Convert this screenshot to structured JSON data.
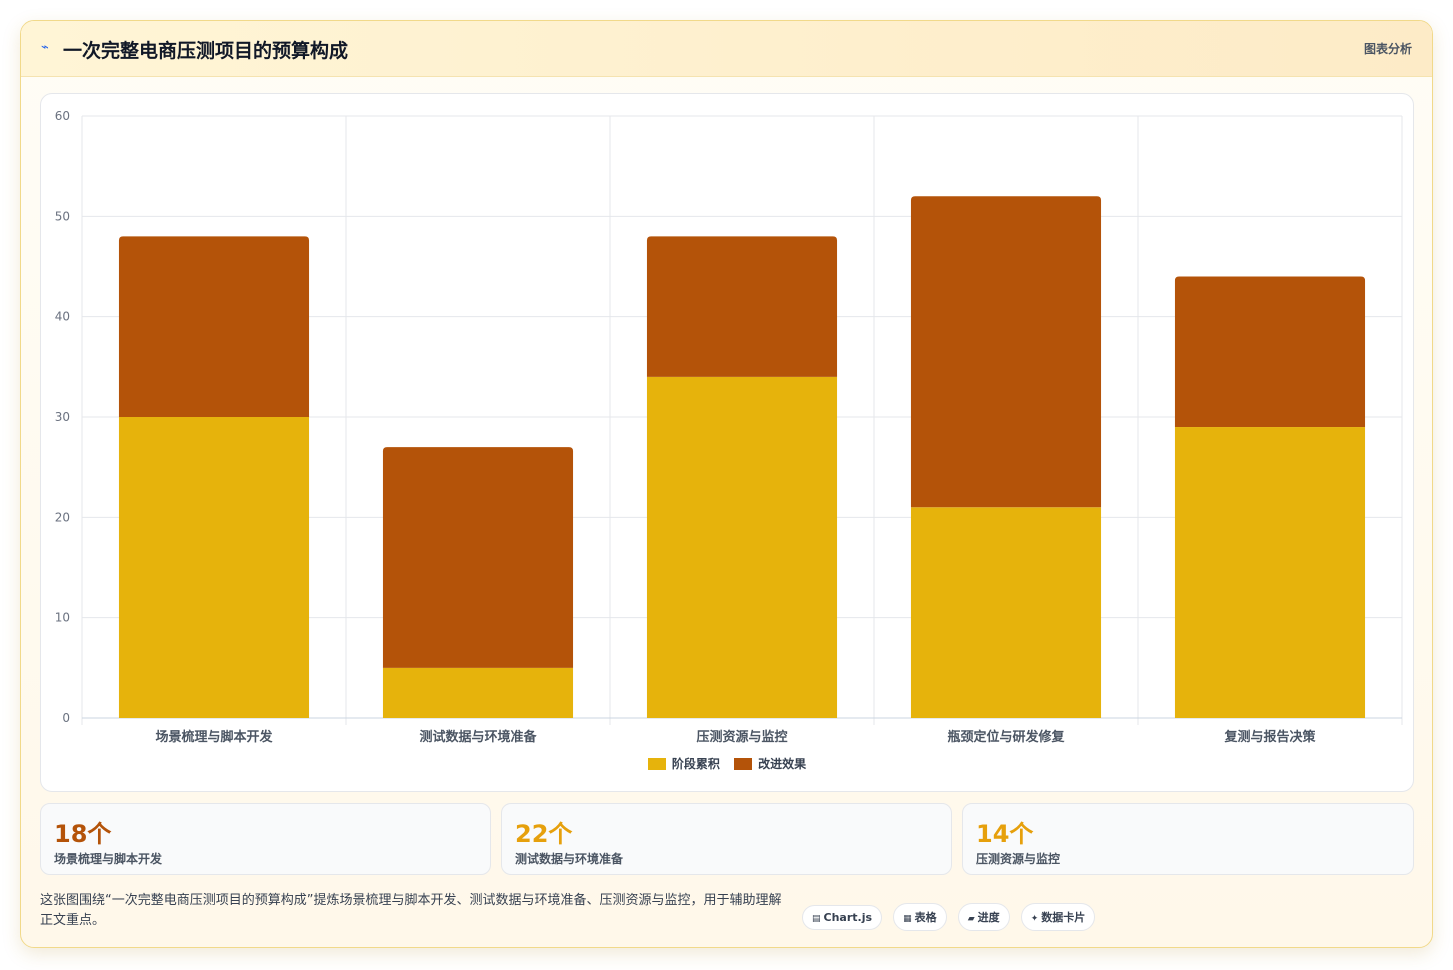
{
  "header": {
    "title_icon": "⌁",
    "title": "一次完整电商压测项目的预算构成",
    "tag": "图表分析"
  },
  "chart_data": {
    "type": "bar",
    "stacked": true,
    "categories": [
      "场景梳理与脚本开发",
      "测试数据与环境准备",
      "压测资源与监控",
      "瓶颈定位与研发修复",
      "复测与报告决策"
    ],
    "series": [
      {
        "name": "阶段累积",
        "color": "#e6b30c",
        "values": [
          30,
          5,
          34,
          21,
          29
        ]
      },
      {
        "name": "改进效果",
        "color": "#b45309",
        "values": [
          18,
          22,
          14,
          31,
          15
        ]
      }
    ],
    "ylim": [
      0,
      60
    ],
    "yticks": [
      0,
      10,
      20,
      30,
      40,
      50,
      60
    ],
    "grid": true,
    "legend_position": "bottom"
  },
  "stats": [
    {
      "value": "18个",
      "label": "场景梳理与脚本开发",
      "color": "#b45309"
    },
    {
      "value": "22个",
      "label": "测试数据与环境准备",
      "color": "#e6a00c"
    },
    {
      "value": "14个",
      "label": "压测资源与监控",
      "color": "#e6a00c"
    }
  ],
  "description": "这张图围绕“一次完整电商压测项目的预算构成”提炼场景梳理与脚本开发、测试数据与环境准备、压测资源与监控，用于辅助理解正文重点。",
  "pills": [
    {
      "icon": "▤",
      "icon_name": "chart-icon",
      "label": "Chart.js"
    },
    {
      "icon": "▦",
      "icon_name": "table-icon",
      "label": "表格"
    },
    {
      "icon": "▰",
      "icon_name": "progress-icon",
      "label": "进度"
    },
    {
      "icon": "✦",
      "icon_name": "card-icon",
      "label": "数据卡片"
    }
  ]
}
